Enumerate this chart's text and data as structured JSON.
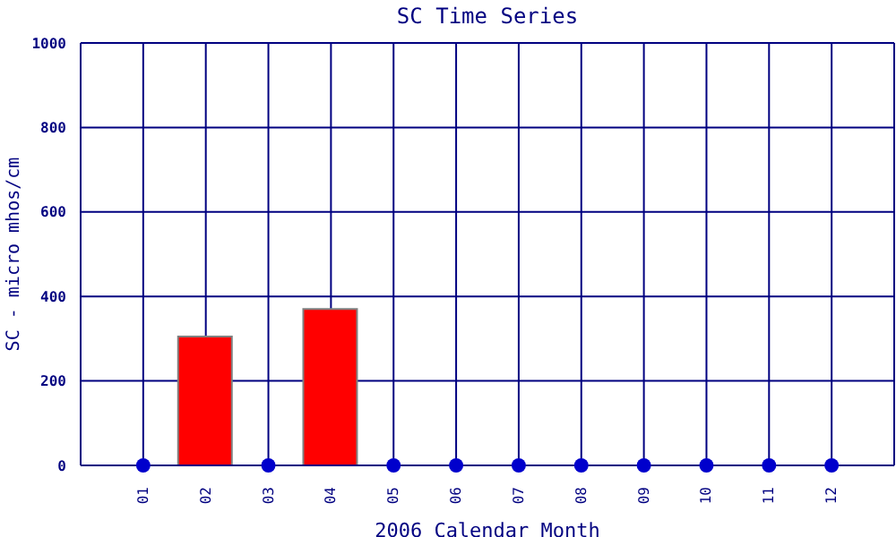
{
  "chart_data": {
    "type": "bar",
    "title": "SC Time Series",
    "xlabel": "2006 Calendar Month",
    "ylabel": "SC - micro mhos/cm",
    "categories": [
      "01",
      "02",
      "03",
      "04",
      "05",
      "06",
      "07",
      "08",
      "09",
      "10",
      "11",
      "12"
    ],
    "series": [
      {
        "color": "#ff0000",
        "values": [
          null,
          305,
          null,
          370,
          null,
          null,
          null,
          null,
          null,
          null,
          null,
          null
        ]
      },
      {
        "type": "scatter",
        "color": "#0000cc",
        "x": [
          "01",
          "03",
          "05",
          "06",
          "07",
          "08",
          "09",
          "10",
          "11",
          "12"
        ],
        "values": [
          0,
          0,
          0,
          0,
          0,
          0,
          0,
          0,
          0,
          0
        ]
      }
    ],
    "ylim": [
      0,
      1000
    ],
    "yticks": [
      0,
      200,
      400,
      600,
      800,
      1000
    ],
    "grid": true,
    "legend": false
  }
}
